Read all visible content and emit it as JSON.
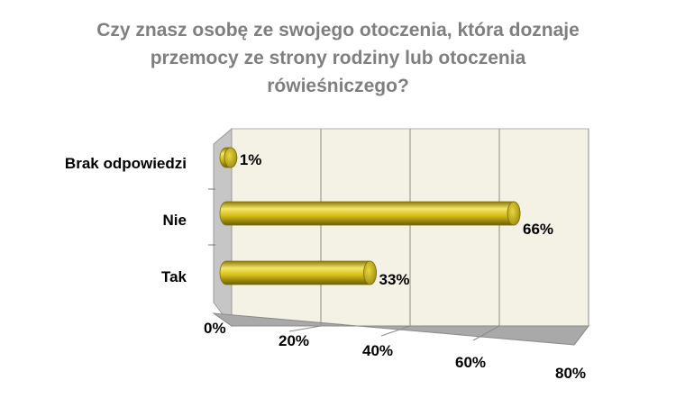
{
  "chart_data": {
    "type": "bar",
    "orientation": "horizontal",
    "title_lines": [
      "Czy znasz osobę ze swojego otoczenia, która doznaje",
      "przemocy ze strony rodziny lub otoczenia",
      "rówieśniczego?"
    ],
    "categories": [
      "Brak odpowiedzi",
      "Nie",
      "Tak"
    ],
    "values": [
      1,
      66,
      33
    ],
    "data_labels": [
      "1%",
      "66%",
      "33%"
    ],
    "xlim": [
      0,
      80
    ],
    "x_ticks": [
      0,
      20,
      40,
      60,
      80
    ],
    "x_tick_labels": [
      "0%",
      "20%",
      "40%",
      "60%",
      "80%"
    ],
    "xlabel": "",
    "ylabel": "",
    "grid": true,
    "legend": "none",
    "style": "3d-cylinder",
    "colors": {
      "bar": "#d4be18",
      "bar_highlight": "#f5e66a",
      "bar_shadow": "#8a7a0a",
      "back_wall": "#f4f2e4",
      "side_wall": "#c6c6c6",
      "floor": "#a9a9a9",
      "gridline": "#8c8c8c",
      "title": "#7f7f7f"
    }
  }
}
